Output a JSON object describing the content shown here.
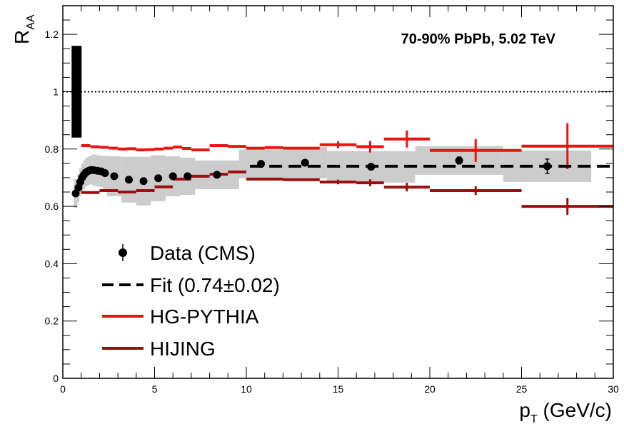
{
  "chart_data": {
    "type": "scatter",
    "annotation": "70-90% PbPb, 5.02 TeV",
    "xlabel": {
      "main": "p",
      "sub": "T",
      "unit": " (GeV/c)"
    },
    "ylabel": {
      "main": "R",
      "sub": "AA"
    },
    "xlim": [
      0,
      30
    ],
    "ylim": [
      0,
      1.3
    ],
    "x_ticks": [
      "0",
      "5",
      "10",
      "15",
      "20",
      "25",
      "30"
    ],
    "y_ticks": [
      "0",
      "0.2",
      "0.4",
      "0.6",
      "0.8",
      "1",
      "1.2"
    ],
    "reference_line": 1.0,
    "normalization_uncertainty": {
      "x": 0.75,
      "low": 0.84,
      "high": 1.16
    },
    "legend": [
      {
        "label": "Data (CMS)",
        "style": "marker",
        "color": "#000000"
      },
      {
        "label": "Fit (0.74±0.02)",
        "style": "dashed",
        "color": "#000000"
      },
      {
        "label": "HG-PYTHIA",
        "style": "line",
        "color": "#ee1111"
      },
      {
        "label": "HIJING",
        "style": "line",
        "color": "#9b0f0f"
      }
    ],
    "series": [
      {
        "name": "Data (CMS)",
        "color": "#000000",
        "points": [
          {
            "x": 0.7,
            "y": 0.645,
            "xl": 0.6,
            "xh": 0.8,
            "sys": 0.05
          },
          {
            "x": 0.85,
            "y": 0.665,
            "xl": 0.8,
            "xh": 0.9,
            "sys": 0.05
          },
          {
            "x": 0.95,
            "y": 0.685,
            "xl": 0.9,
            "xh": 1.0,
            "sys": 0.05
          },
          {
            "x": 1.05,
            "y": 0.7,
            "xl": 1.0,
            "xh": 1.1,
            "sys": 0.05
          },
          {
            "x": 1.15,
            "y": 0.71,
            "xl": 1.1,
            "xh": 1.2,
            "sys": 0.05
          },
          {
            "x": 1.25,
            "y": 0.718,
            "xl": 1.2,
            "xh": 1.3,
            "sys": 0.05
          },
          {
            "x": 1.35,
            "y": 0.722,
            "xl": 1.3,
            "xh": 1.4,
            "sys": 0.05
          },
          {
            "x": 1.45,
            "y": 0.725,
            "xl": 1.4,
            "xh": 1.5,
            "sys": 0.05
          },
          {
            "x": 1.55,
            "y": 0.727,
            "xl": 1.5,
            "xh": 1.6,
            "sys": 0.05
          },
          {
            "x": 1.7,
            "y": 0.726,
            "xl": 1.6,
            "xh": 1.8,
            "sys": 0.055
          },
          {
            "x": 1.9,
            "y": 0.724,
            "xl": 1.8,
            "xh": 2.0,
            "sys": 0.055
          },
          {
            "x": 2.1,
            "y": 0.722,
            "xl": 2.0,
            "xh": 2.2,
            "sys": 0.055
          },
          {
            "x": 2.3,
            "y": 0.716,
            "xl": 2.2,
            "xh": 2.4,
            "sys": 0.06
          },
          {
            "x": 2.8,
            "y": 0.705,
            "xl": 2.4,
            "xh": 3.2,
            "sys": 0.07
          },
          {
            "x": 3.6,
            "y": 0.693,
            "xl": 3.2,
            "xh": 4.0,
            "sys": 0.08
          },
          {
            "x": 4.4,
            "y": 0.688,
            "xl": 4.0,
            "xh": 4.8,
            "sys": 0.085
          },
          {
            "x": 5.2,
            "y": 0.698,
            "xl": 4.8,
            "xh": 5.6,
            "sys": 0.08
          },
          {
            "x": 6.0,
            "y": 0.705,
            "xl": 5.6,
            "xh": 6.4,
            "sys": 0.07
          },
          {
            "x": 6.8,
            "y": 0.705,
            "xl": 6.4,
            "xh": 7.2,
            "sys": 0.065
          },
          {
            "x": 8.4,
            "y": 0.71,
            "xl": 7.2,
            "xh": 9.6,
            "sys": 0.05
          },
          {
            "x": 10.8,
            "y": 0.748,
            "xl": 9.6,
            "xh": 12.0,
            "sys": 0.05
          },
          {
            "x": 13.2,
            "y": 0.752,
            "xl": 12.0,
            "xh": 14.4,
            "sys": 0.055
          },
          {
            "x": 16.8,
            "y": 0.738,
            "xl": 14.4,
            "xh": 19.2,
            "sys": 0.055
          },
          {
            "x": 21.6,
            "y": 0.76,
            "xl": 19.2,
            "xh": 24.0,
            "sys": 0.05,
            "stat": 0.012
          },
          {
            "x": 26.4,
            "y": 0.74,
            "xl": 24.0,
            "xh": 28.8,
            "sys": 0.055,
            "stat": 0.025
          }
        ]
      },
      {
        "name": "Fit (0.74±0.02)",
        "color": "#000000",
        "x": [
          10.2,
          30.0
        ],
        "y": [
          0.74,
          0.74
        ]
      },
      {
        "name": "HG-PYTHIA",
        "color": "#ee1111",
        "bins": [
          {
            "xl": 1.0,
            "xh": 1.5,
            "y": 0.812
          },
          {
            "xl": 1.5,
            "xh": 2.0,
            "y": 0.808
          },
          {
            "xl": 2.0,
            "xh": 2.5,
            "y": 0.806
          },
          {
            "xl": 2.5,
            "xh": 3.0,
            "y": 0.803
          },
          {
            "xl": 3.0,
            "xh": 3.5,
            "y": 0.8
          },
          {
            "xl": 3.5,
            "xh": 4.0,
            "y": 0.801
          },
          {
            "xl": 4.0,
            "xh": 4.5,
            "y": 0.797
          },
          {
            "xl": 4.5,
            "xh": 5.0,
            "y": 0.798
          },
          {
            "xl": 5.0,
            "xh": 5.5,
            "y": 0.8
          },
          {
            "xl": 5.5,
            "xh": 6.0,
            "y": 0.803
          },
          {
            "xl": 6.0,
            "xh": 6.5,
            "y": 0.807
          },
          {
            "xl": 6.5,
            "xh": 7.0,
            "y": 0.802
          },
          {
            "xl": 7.0,
            "xh": 8.0,
            "y": 0.797
          },
          {
            "xl": 8.0,
            "xh": 9.0,
            "y": 0.812
          },
          {
            "xl": 9.0,
            "xh": 10.0,
            "y": 0.809
          },
          {
            "xl": 10.0,
            "xh": 11.0,
            "y": 0.803
          },
          {
            "xl": 11.0,
            "xh": 12.0,
            "y": 0.805
          },
          {
            "xl": 12.0,
            "xh": 14.0,
            "y": 0.803
          },
          {
            "xl": 14.0,
            "xh": 16.0,
            "y": 0.815,
            "err": 0.012
          },
          {
            "xl": 16.0,
            "xh": 17.5,
            "y": 0.808,
            "err": 0.02
          },
          {
            "xl": 17.5,
            "xh": 20.0,
            "y": 0.835,
            "err": 0.03
          },
          {
            "xl": 20.0,
            "xh": 25.0,
            "y": 0.795,
            "err": 0.04
          },
          {
            "xl": 25.0,
            "xh": 30.0,
            "y": 0.81,
            "err": 0.08
          }
        ]
      },
      {
        "name": "HIJING",
        "color": "#9b0f0f",
        "bins": [
          {
            "xl": 1.0,
            "xh": 2.0,
            "y": 0.648
          },
          {
            "xl": 2.0,
            "xh": 3.0,
            "y": 0.655
          },
          {
            "xl": 3.0,
            "xh": 4.0,
            "y": 0.65
          },
          {
            "xl": 4.0,
            "xh": 5.0,
            "y": 0.655
          },
          {
            "xl": 5.0,
            "xh": 6.0,
            "y": 0.668
          },
          {
            "xl": 6.0,
            "xh": 7.0,
            "y": 0.695
          },
          {
            "xl": 7.0,
            "xh": 8.0,
            "y": 0.705
          },
          {
            "xl": 8.0,
            "xh": 9.0,
            "y": 0.712
          },
          {
            "xl": 9.0,
            "xh": 10.0,
            "y": 0.72
          },
          {
            "xl": 10.0,
            "xh": 12.0,
            "y": 0.695
          },
          {
            "xl": 12.0,
            "xh": 14.0,
            "y": 0.693
          },
          {
            "xl": 14.0,
            "xh": 16.0,
            "y": 0.685,
            "err": 0.008
          },
          {
            "xl": 16.0,
            "xh": 17.5,
            "y": 0.682,
            "err": 0.012
          },
          {
            "xl": 17.5,
            "xh": 20.0,
            "y": 0.667,
            "err": 0.015
          },
          {
            "xl": 20.0,
            "xh": 25.0,
            "y": 0.655,
            "err": 0.015
          },
          {
            "xl": 25.0,
            "xh": 30.0,
            "y": 0.6,
            "err": 0.03
          }
        ]
      }
    ]
  }
}
